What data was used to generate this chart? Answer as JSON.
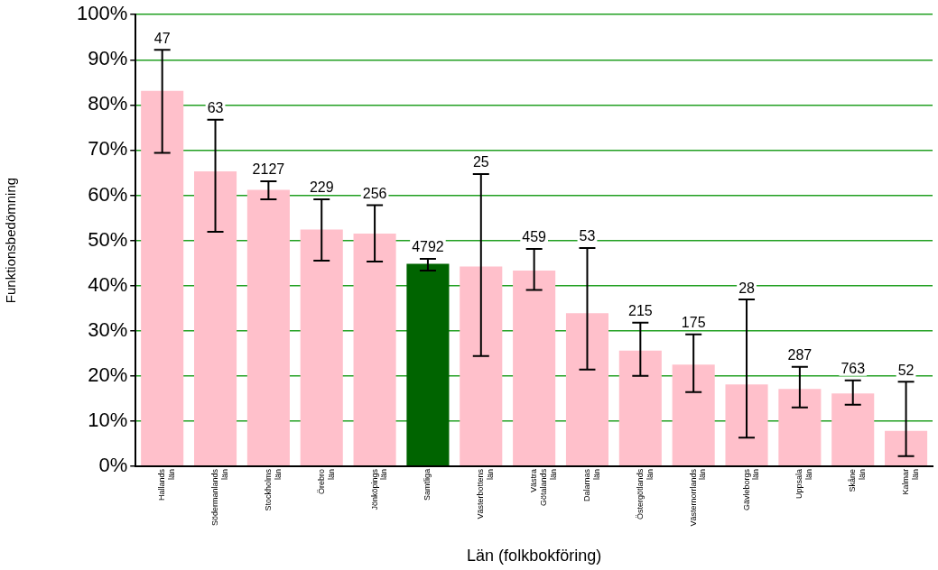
{
  "chart_data": {
    "type": "bar",
    "xlabel": "Län (folkbokföring)",
    "ylabel": "Funktionsbedömning",
    "categories": [
      "Hallands\nlän",
      "Södermanlands\nlän",
      "Stockholms\nlän",
      "Örebro\nlän",
      "Jönköpings\nlän",
      "Samtliga",
      "Västerbottens\nlän",
      "Västra\nGötalands\nlän",
      "Dalarnas\nlän",
      "Östergötlands\nlän",
      "Västernorrlands\nlän",
      "Gävleborgs\nlän",
      "Uppsala\nlän",
      "Skåne\nlän",
      "Kalmar\nlän"
    ],
    "values": [
      83.1,
      65.3,
      61.2,
      52.4,
      51.5,
      44.8,
      44.2,
      43.3,
      33.9,
      25.6,
      22.5,
      18.1,
      17.1,
      16.1,
      7.8
    ],
    "colors": [
      "#ffc0cb",
      "#ffc0cb",
      "#ffc0cb",
      "#ffc0cb",
      "#ffc0cb",
      "#006400",
      "#ffc0cb",
      "#ffc0cb",
      "#ffc0cb",
      "#ffc0cb",
      "#ffc0cb",
      "#ffc0cb",
      "#ffc0cb",
      "#ffc0cb",
      "#ffc0cb"
    ],
    "errors": [
      [
        69.4,
        92.2
      ],
      [
        51.9,
        76.7
      ],
      [
        59.1,
        63.1
      ],
      [
        45.5,
        59.1
      ],
      [
        45.3,
        57.8
      ],
      [
        43.3,
        45.9
      ],
      [
        24.4,
        64.7
      ],
      [
        39.0,
        48.1
      ],
      [
        21.4,
        48.3
      ],
      [
        20.0,
        31.8
      ],
      [
        16.4,
        29.2
      ],
      [
        6.3,
        36.9
      ],
      [
        13.0,
        22.0
      ],
      [
        13.6,
        19.0
      ],
      [
        2.2,
        18.7
      ]
    ],
    "annotations": [
      {
        "text": "47",
        "x": "Hallands\nlän",
        "y": 92.2
      },
      {
        "text": "63",
        "x": "Södermanlands\nlän",
        "y": 76.7
      },
      {
        "text": "2127",
        "x": "Stockholms\nlän",
        "y": 63.1
      },
      {
        "text": "229",
        "x": "Örebro\nlän",
        "y": 59.1
      },
      {
        "text": "256",
        "x": "Jönköpings\nlän",
        "y": 57.8
      },
      {
        "text": "4792",
        "x": "Samtliga",
        "y": 45.9
      },
      {
        "text": "25",
        "x": "Västerbottens\nlän",
        "y": 64.7
      },
      {
        "text": "459",
        "x": "Västra\nGötalands\nlän",
        "y": 48.1
      },
      {
        "text": "53",
        "x": "Dalarnas\nlän",
        "y": 48.3
      },
      {
        "text": "215",
        "x": "Östergötlands\nlän",
        "y": 31.8
      },
      {
        "text": "175",
        "x": "Västernorrlands\nlän",
        "y": 29.2
      },
      {
        "text": "28",
        "x": "Gävleborgs\nlän",
        "y": 36.9
      },
      {
        "text": "287",
        "x": "Uppsala\nlän",
        "y": 22.0
      },
      {
        "text": "763",
        "x": "Skåne\nlän",
        "y": 19.0
      },
      {
        "text": "52",
        "x": "Kalmar\nlän",
        "y": 18.7
      }
    ],
    "ylim": [
      0,
      100
    ],
    "yticks": [
      {
        "value": 0,
        "label": "0%"
      },
      {
        "value": 10,
        "label": "10%"
      },
      {
        "value": 20,
        "label": "20%"
      },
      {
        "value": 30,
        "label": "30%"
      },
      {
        "value": 40,
        "label": "40%"
      },
      {
        "value": 50,
        "label": "50%"
      },
      {
        "value": 60,
        "label": "60%"
      },
      {
        "value": 70,
        "label": "70%"
      },
      {
        "value": 80,
        "label": "80%"
      },
      {
        "value": 90,
        "label": "90%"
      },
      {
        "value": 100,
        "label": "100%"
      }
    ],
    "grid": "y",
    "legend": false
  }
}
